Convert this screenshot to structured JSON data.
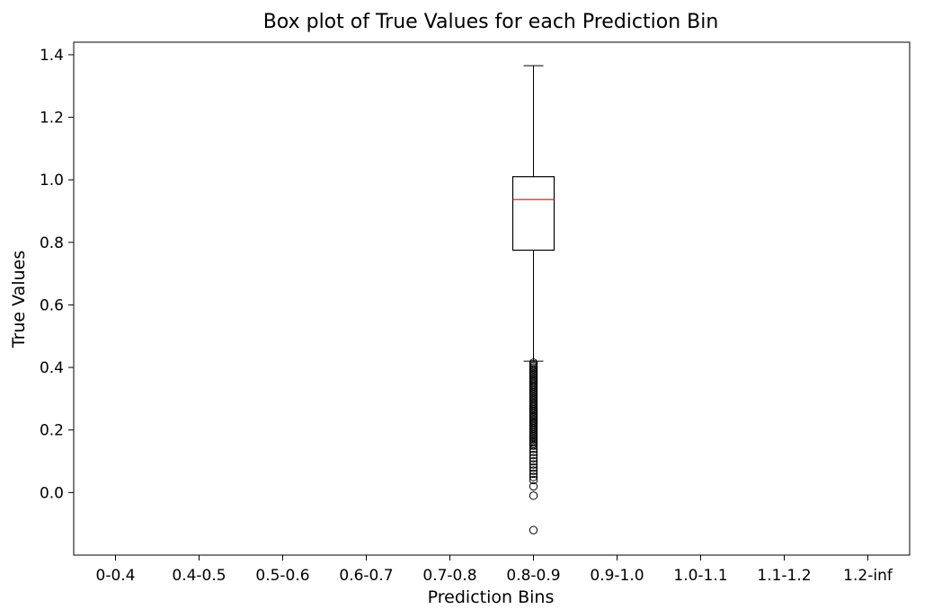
{
  "chart_data": {
    "type": "box",
    "title": "Box plot of True Values for each Prediction Bin",
    "xlabel": "Prediction Bins",
    "ylabel": "True Values",
    "categories": [
      "0-0.4",
      "0.4-0.5",
      "0.5-0.6",
      "0.6-0.7",
      "0.7-0.8",
      "0.8-0.9",
      "0.9-1.0",
      "1.0-1.1",
      "1.1-1.2",
      "1.2-inf"
    ],
    "ylim": [
      -0.2,
      1.44
    ],
    "yticks": [
      0.0,
      0.2,
      0.4,
      0.6,
      0.8,
      1.0,
      1.2,
      1.4
    ],
    "ytick_labels": [
      "0.0",
      "0.2",
      "0.4",
      "0.6",
      "0.8",
      "1.0",
      "1.2",
      "1.4"
    ],
    "grid": false,
    "boxes": [
      {
        "category": "0.8-0.9",
        "whisker_low": 0.42,
        "q1": 0.775,
        "median": 0.937,
        "q3": 1.01,
        "whisker_high": 1.365,
        "outliers": [
          0.415,
          0.41,
          0.405,
          0.4,
          0.395,
          0.39,
          0.385,
          0.38,
          0.375,
          0.37,
          0.365,
          0.36,
          0.355,
          0.35,
          0.345,
          0.34,
          0.335,
          0.33,
          0.325,
          0.32,
          0.315,
          0.31,
          0.305,
          0.3,
          0.295,
          0.29,
          0.285,
          0.28,
          0.275,
          0.27,
          0.265,
          0.26,
          0.255,
          0.25,
          0.245,
          0.24,
          0.235,
          0.23,
          0.225,
          0.22,
          0.215,
          0.21,
          0.205,
          0.2,
          0.195,
          0.19,
          0.185,
          0.18,
          0.175,
          0.17,
          0.165,
          0.16,
          0.155,
          0.15,
          0.14,
          0.13,
          0.12,
          0.11,
          0.1,
          0.09,
          0.08,
          0.07,
          0.06,
          0.05,
          0.04,
          0.02,
          -0.01,
          -0.12
        ]
      }
    ],
    "colors": {
      "box": "#000000",
      "median": "#d62728",
      "outlier": "#000000"
    }
  }
}
